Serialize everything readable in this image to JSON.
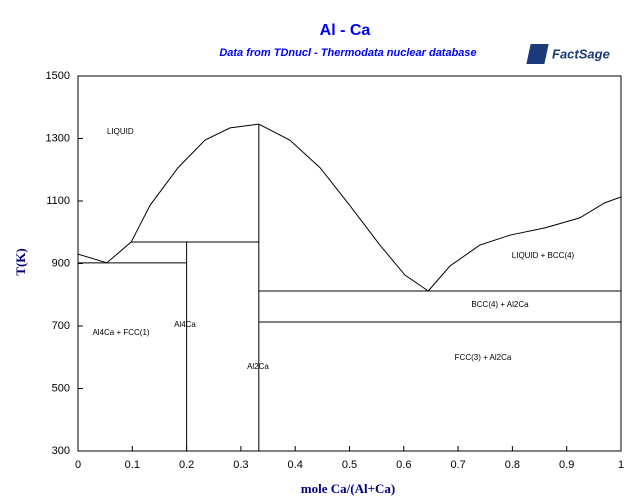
{
  "chart_data": {
    "type": "line",
    "title": "Al - Ca",
    "subtitle": "Data from TDnucl - Thermodata nuclear database",
    "logo": "FactSage",
    "xlabel": "mole Ca/(Al+Ca)",
    "ylabel": "T(K)",
    "color": "#000000",
    "grid": false,
    "xlim": [
      0,
      1
    ],
    "ylim": [
      300,
      1500
    ],
    "xticks": [
      0,
      0.1,
      0.2,
      0.3,
      0.4,
      0.5,
      0.6,
      0.7,
      0.8,
      0.9,
      1
    ],
    "yticks": [
      300,
      500,
      700,
      900,
      1100,
      1300,
      1500
    ],
    "series": [
      {
        "x": [
          0,
          0.053,
          0.098
        ],
        "values": [
          930,
          902,
          969
        ]
      },
      {
        "x": [
          0.098,
          0.133,
          0.184,
          0.234,
          0.28,
          0.333,
          0.39,
          0.446,
          0.5,
          0.556,
          0.602,
          0.645
        ],
        "values": [
          969,
          1087,
          1206,
          1295,
          1334,
          1346,
          1295,
          1206,
          1087,
          959,
          863,
          812
        ]
      },
      {
        "x": [
          0.645,
          0.685,
          0.74,
          0.796,
          0.86,
          0.924,
          0.97,
          1
        ],
        "values": [
          812,
          892,
          959,
          991,
          1014,
          1046,
          1094,
          1113
        ]
      },
      {
        "x": [
          0.098,
          0.333
        ],
        "values": [
          969,
          969
        ]
      },
      {
        "x": [
          0,
          0.2
        ],
        "values": [
          902,
          902
        ]
      },
      {
        "x": [
          0.333,
          1
        ],
        "values": [
          812,
          812
        ]
      },
      {
        "x": [
          0.333,
          1
        ],
        "values": [
          713,
          713
        ]
      },
      {
        "x": [
          0.2,
          0.2
        ],
        "values": [
          300,
          969
        ]
      },
      {
        "x": [
          0.333,
          0.333
        ],
        "values": [
          300,
          1346
        ]
      }
    ],
    "annotations": [
      "LIQUID",
      "LIQUID + BCC(4)",
      "BCC(4) + Al2Ca",
      "FCC(3) + Al2Ca",
      "Al4Ca + FCC(1)",
      "Al4Ca",
      "Al2Ca"
    ]
  }
}
